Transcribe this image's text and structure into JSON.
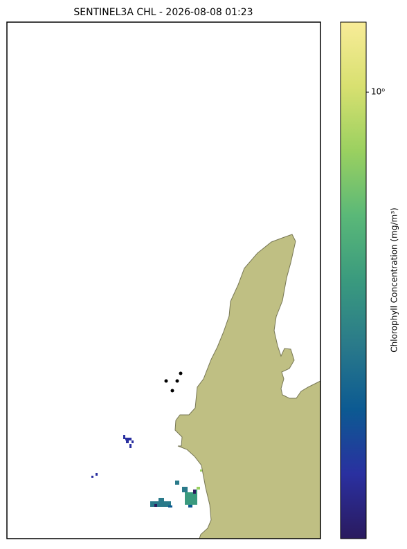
{
  "chart_data": {
    "type": "map",
    "title": "SENTINEL3A CHL - 2026-08-08 01:23",
    "colorbar": {
      "label": "Chlorophyll Concentration (mg/m³)",
      "scale": "log",
      "clim": [
        0.012,
        2
      ],
      "ticks": [
        {
          "value": 1,
          "label": "10⁰"
        }
      ],
      "colors": [
        "#2a1a5e",
        "#2a30a0",
        "#0c5a92",
        "#2a7a8a",
        "#3a9a7e",
        "#5ab878",
        "#9ad060",
        "#d8e070",
        "#f8ec98"
      ]
    }
  }
}
